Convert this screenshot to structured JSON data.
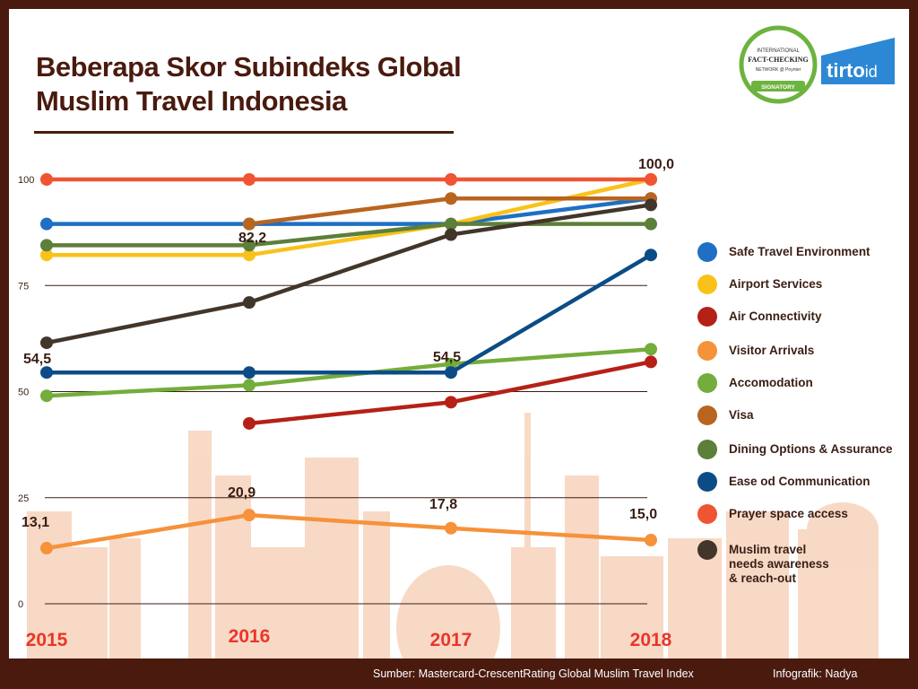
{
  "title": "Beberapa Skor Subindeks Global Muslim Travel Indonesia",
  "footer": {
    "source": "Sumber:  Mastercard-CrescentRating Global Muslim Travel Index",
    "credit": "Infografik: Nadya"
  },
  "badge": {
    "line1": "INTERNATIONAL",
    "line2": "FACT-CHECKING",
    "line3": "NETWORK @ Poynter",
    "line4": "SIGNATORY"
  },
  "brand": {
    "name": "tirto",
    "suffix": "id"
  },
  "colors": {
    "background": "#ffffff",
    "frame": "#4a1a0f",
    "year": "#e8372a"
  },
  "chart_data": {
    "type": "line",
    "title": "Beberapa Skor Subindeks Global Muslim Travel Indonesia",
    "xlabel": "",
    "ylabel": "",
    "x": [
      "2015",
      "2016",
      "2017",
      "2018"
    ],
    "ylim": [
      0,
      100
    ],
    "yticks": [
      "0",
      "25",
      "50",
      "75",
      "100"
    ],
    "grid": true,
    "legend_position": "right",
    "series": [
      {
        "name": "Safe Travel Environment",
        "color": "#1f6fc4",
        "values": [
          89.5,
          89.5,
          89.5,
          95.5
        ]
      },
      {
        "name": "Airport Services",
        "color": "#f9c21a",
        "values": [
          82.2,
          82.2,
          89.5,
          100
        ]
      },
      {
        "name": "Air Connectivity",
        "color": "#b52117",
        "values": [
          null,
          42.5,
          47.5,
          57
        ]
      },
      {
        "name": "Visitor Arrivals",
        "color": "#f5923a",
        "values": [
          13.1,
          20.9,
          17.8,
          15.0
        ]
      },
      {
        "name": "Accomodation",
        "color": "#73ad3b",
        "values": [
          49,
          51.5,
          56.5,
          60
        ]
      },
      {
        "name": "Visa",
        "color": "#b8651f",
        "values": [
          null,
          89.5,
          95.5,
          95.5
        ]
      },
      {
        "name": "Dining Options & Assurance",
        "color": "#5c7f3a",
        "values": [
          84.5,
          84.5,
          89.5,
          89.5
        ]
      },
      {
        "name": "Ease od Communication",
        "color": "#0c4c86",
        "values": [
          54.5,
          54.5,
          54.5,
          82.2
        ]
      },
      {
        "name": "Prayer space access",
        "color": "#ef5533",
        "values": [
          100,
          100,
          100,
          100
        ]
      },
      {
        "name": "Muslim travel needs awareness & reach-out",
        "color": "#42352a",
        "values": [
          61.5,
          71,
          87,
          94
        ]
      }
    ],
    "annotations": [
      {
        "text": "100,0",
        "x": "2018",
        "y": 100
      },
      {
        "text": "82,2",
        "x": "2016",
        "y": 82.2
      },
      {
        "text": "54,5",
        "x": "2015",
        "y": 54.5
      },
      {
        "text": "54,5",
        "x": "2017",
        "y": 54.5
      },
      {
        "text": "13,1",
        "x": "2015",
        "y": 13.1
      },
      {
        "text": "20,9",
        "x": "2016",
        "y": 20.9
      },
      {
        "text": "17,8",
        "x": "2017",
        "y": 17.8
      },
      {
        "text": "15,0",
        "x": "2018",
        "y": 15.0
      }
    ]
  }
}
